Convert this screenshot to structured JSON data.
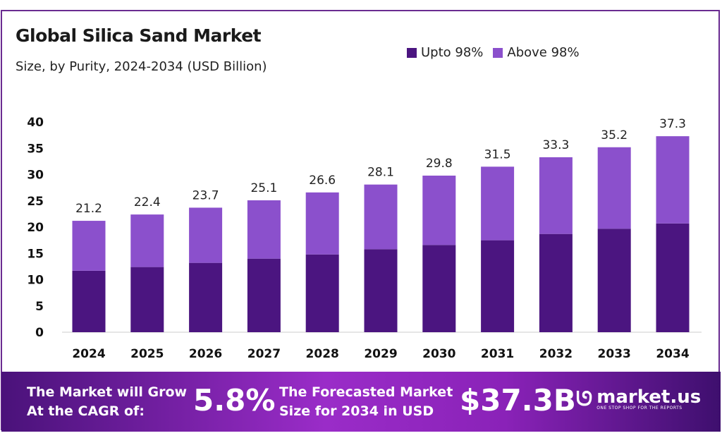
{
  "chart_data": {
    "type": "bar",
    "stacked": true,
    "title": "Global Silica Sand Market",
    "subtitle": "Size, by Purity, 2024-2034 (USD Billion)",
    "categories": [
      "2024",
      "2025",
      "2026",
      "2027",
      "2028",
      "2029",
      "2030",
      "2031",
      "2032",
      "2033",
      "2034"
    ],
    "series": [
      {
        "name": "Upto 98%",
        "color": "#4b1580",
        "values": [
          11.7,
          12.4,
          13.2,
          14.0,
          14.8,
          15.8,
          16.6,
          17.5,
          18.7,
          19.7,
          20.7
        ]
      },
      {
        "name": "Above 98%",
        "color": "#8b50cc",
        "values": [
          9.5,
          10.0,
          10.5,
          11.1,
          11.8,
          12.3,
          13.2,
          14.0,
          14.6,
          15.5,
          16.6
        ]
      }
    ],
    "totals": [
      "21.2",
      "22.4",
      "23.7",
      "25.1",
      "26.6",
      "28.1",
      "29.8",
      "31.5",
      "33.3",
      "35.2",
      "37.3"
    ],
    "ylim": [
      0,
      40
    ],
    "yticks": [
      0,
      5,
      10,
      15,
      20,
      25,
      30,
      35,
      40
    ],
    "grid": false,
    "legend_placement": "top-right"
  },
  "banner": {
    "cagr_label_line1": "The Market will Grow",
    "cagr_label_line2": "At the CAGR of:",
    "cagr_value": "5.8%",
    "forecast_label_line1": "The Forecasted Market",
    "forecast_label_line2": "Size for 2034 in USD",
    "forecast_value": "$37.3B",
    "logo_name": "market.us",
    "logo_tagline": "ONE STOP SHOP FOR THE REPORTS"
  }
}
